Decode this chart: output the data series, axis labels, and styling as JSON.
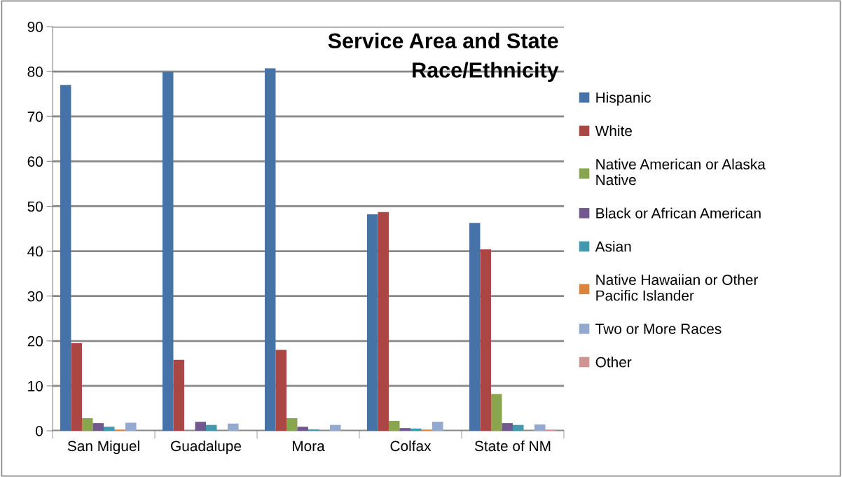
{
  "chart_data": {
    "type": "bar",
    "title": "Service Area and State\nRace/Ethnicity",
    "categories": [
      "San Miguel",
      "Guadalupe",
      "Mora",
      "Colfax",
      "State of NM"
    ],
    "series": [
      {
        "name": "Hispanic",
        "color": "#4572a7",
        "values": [
          77,
          79.9,
          80.7,
          48.2,
          46.3
        ]
      },
      {
        "name": "White",
        "color": "#aa4643",
        "values": [
          19.5,
          15.8,
          18,
          48.7,
          40.4
        ]
      },
      {
        "name": "Native American or Alaska Native",
        "color": "#89a54e",
        "values": [
          2.8,
          null,
          2.8,
          2.2,
          8.2
        ]
      },
      {
        "name": "Black or African American",
        "color": "#71588f",
        "values": [
          1.7,
          2,
          0.9,
          0.6,
          1.7
        ]
      },
      {
        "name": "Asian",
        "color": "#4198af",
        "values": [
          0.9,
          1.3,
          0.3,
          0.5,
          1.3
        ]
      },
      {
        "name": "Native Hawaiian or Other Pacific Islander",
        "color": "#db843d",
        "values": [
          0.2,
          null,
          null,
          0.2,
          null
        ]
      },
      {
        "name": "Two or More Races",
        "color": "#93a9cf",
        "values": [
          1.8,
          1.6,
          1.3,
          2,
          1.4
        ]
      },
      {
        "name": "Other",
        "color": "#d19392",
        "values": [
          null,
          null,
          null,
          null,
          0.2
        ]
      }
    ],
    "ylim": [
      0,
      90
    ],
    "yticks": [
      0,
      10,
      20,
      30,
      40,
      50,
      60,
      70,
      80,
      90
    ],
    "grid": "y",
    "legend": "right"
  }
}
